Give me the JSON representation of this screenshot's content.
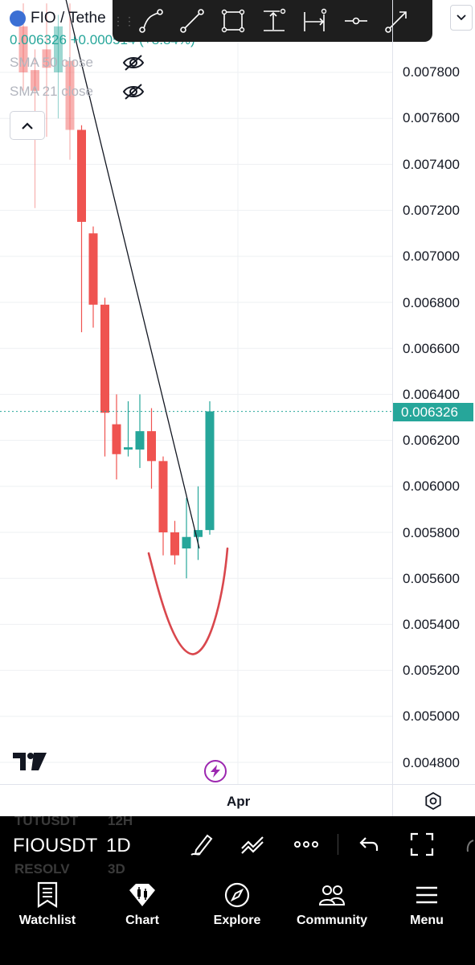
{
  "legend": {
    "symbol_title": "FIO / Tethe",
    "price_change": "0.006326 +0.000514 (+8.84%)",
    "indicators": [
      {
        "name": "SMA 50 close",
        "icon": "eye-off-icon"
      },
      {
        "name": "SMA 21 close",
        "icon": "eye-off-icon"
      }
    ],
    "collapse_icon": "chevron-up-icon"
  },
  "drawing_toolbar": {
    "tools": [
      "trend-line-icon",
      "line-icon",
      "rectangle-icon",
      "vertical-measure-icon",
      "horizontal-measure-icon",
      "horizontal-line-icon",
      "arrow-icon"
    ]
  },
  "price_axis": {
    "labels": [
      "0.007800",
      "0.007600",
      "0.007400",
      "0.007200",
      "0.007000",
      "0.006800",
      "0.006600",
      "0.006400",
      "0.006200",
      "0.006000",
      "0.005800",
      "0.005600",
      "0.005400",
      "0.005200",
      "0.005000",
      "0.004800"
    ],
    "current_price": "0.006326"
  },
  "time_axis": {
    "label": "Apr"
  },
  "colors": {
    "up": "#26a69a",
    "down": "#ef5350",
    "annotation": "#d9474d"
  },
  "chart_data": {
    "type": "candlestick",
    "symbol": "FIOUSDT",
    "interval": "1D",
    "ylim": [
      0.0047,
      0.0081
    ],
    "current_price": 0.006326,
    "candles": [
      {
        "o": 0.008,
        "h": 0.0081,
        "l": 0.00772,
        "c": 0.0078
      },
      {
        "o": 0.00781,
        "h": 0.0079,
        "l": 0.00721,
        "c": 0.00772
      },
      {
        "o": 0.0079,
        "h": 0.0081,
        "l": 0.00752,
        "c": 0.00782
      },
      {
        "o": 0.0078,
        "h": 0.00805,
        "l": 0.0076,
        "c": 0.008
      },
      {
        "o": 0.00785,
        "h": 0.0081,
        "l": 0.00742,
        "c": 0.00755
      },
      {
        "o": 0.00755,
        "h": 0.00757,
        "l": 0.00667,
        "c": 0.00715
      },
      {
        "o": 0.0071,
        "h": 0.00713,
        "l": 0.00669,
        "c": 0.00679
      },
      {
        "o": 0.00679,
        "h": 0.00682,
        "l": 0.00613,
        "c": 0.00632
      },
      {
        "o": 0.00627,
        "h": 0.0064,
        "l": 0.00603,
        "c": 0.00614
      },
      {
        "o": 0.00616,
        "h": 0.00637,
        "l": 0.00613,
        "c": 0.00617
      },
      {
        "o": 0.00616,
        "h": 0.0064,
        "l": 0.00608,
        "c": 0.00624
      },
      {
        "o": 0.00624,
        "h": 0.00634,
        "l": 0.00599,
        "c": 0.00611
      },
      {
        "o": 0.00611,
        "h": 0.00613,
        "l": 0.0057,
        "c": 0.0058
      },
      {
        "o": 0.0058,
        "h": 0.00585,
        "l": 0.00566,
        "c": 0.0057
      },
      {
        "o": 0.00573,
        "h": 0.00595,
        "l": 0.0056,
        "c": 0.00578
      },
      {
        "o": 0.00578,
        "h": 0.006,
        "l": 0.00568,
        "c": 0.00581
      },
      {
        "o": 0.00581,
        "h": 0.00637,
        "l": 0.00579,
        "c": 0.006326
      }
    ],
    "trend_line": {
      "from": {
        "index": 3.5,
        "price": 0.00815
      },
      "to": {
        "index": 15.1,
        "price": 0.00573
      }
    },
    "annotation_curve": {
      "start": {
        "index": 1
      },
      "bottom_price": 0.00527,
      "color": "#d9474d"
    }
  },
  "symbol_bar": {
    "symbol": "FIOUSDT",
    "interval": "1D",
    "ghost_rows": [
      "TUTUSDT",
      "12H",
      "RESOLV",
      "3D"
    ],
    "icons": [
      "pen-icon",
      "trend-tools-icon",
      "more-icon",
      "undo-icon",
      "fullscreen-icon"
    ]
  },
  "bottom_nav": [
    {
      "label": "Watchlist",
      "icon": "watchlist-icon"
    },
    {
      "label": "Chart",
      "icon": "chart-icon"
    },
    {
      "label": "Explore",
      "icon": "compass-icon"
    },
    {
      "label": "Community",
      "icon": "community-icon"
    },
    {
      "label": "Menu",
      "icon": "menu-icon"
    }
  ]
}
